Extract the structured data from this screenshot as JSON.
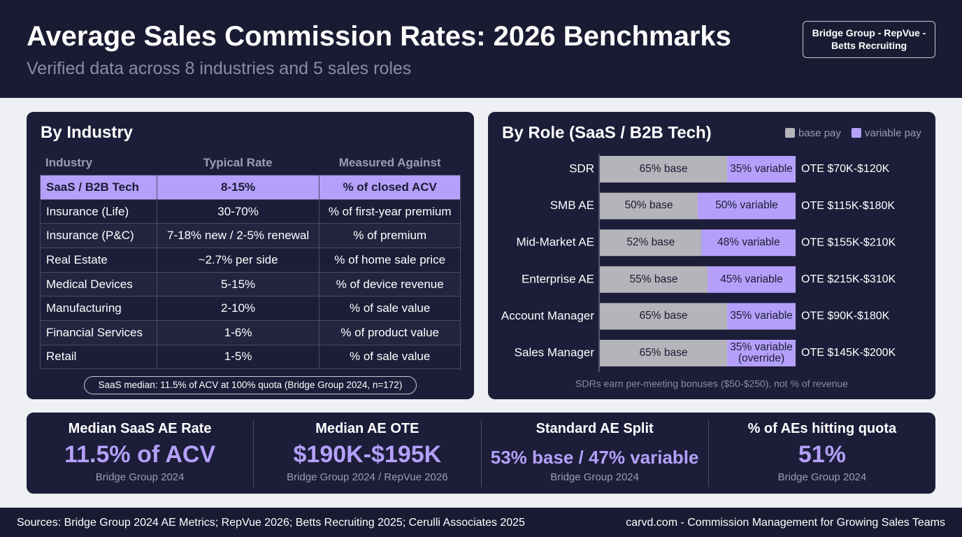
{
  "header": {
    "title": "Average Sales Commission Rates: 2026 Benchmarks",
    "subtitle": "Verified data across 8 industries and 5 sales roles",
    "badge": "Bridge Group - RepVue - Betts Recruiting"
  },
  "industry": {
    "title": "By Industry",
    "columns": [
      "Industry",
      "Typical Rate",
      "Measured Against"
    ],
    "rows": [
      [
        "SaaS / B2B Tech",
        "8-15%",
        "% of closed ACV"
      ],
      [
        "Insurance (Life)",
        "30-70%",
        "% of first-year premium"
      ],
      [
        "Insurance (P&C)",
        "7-18% new / 2-5% renewal",
        "% of premium"
      ],
      [
        "Real Estate",
        "~2.7% per side",
        "% of home sale price"
      ],
      [
        "Medical Devices",
        "5-15%",
        "% of device revenue"
      ],
      [
        "Manufacturing",
        "2-10%",
        "% of sale value"
      ],
      [
        "Financial Services",
        "1-6%",
        "% of product value"
      ],
      [
        "Retail",
        "1-5%",
        "% of sale value"
      ]
    ],
    "note": "SaaS median: 11.5% of ACV at 100% quota (Bridge Group 2024, n=172)"
  },
  "chart_data": {
    "type": "stacked-bar-horizontal",
    "title": "By Role (SaaS / B2B Tech)",
    "categories": [
      "SDR",
      "SMB AE",
      "Mid-Market AE",
      "Enterprise AE",
      "Account Manager",
      "Sales Manager"
    ],
    "series": [
      {
        "name": "base pay",
        "color": "#b4b4ba",
        "values": [
          65,
          50,
          52,
          55,
          65,
          65
        ],
        "value_labels": [
          "65% base",
          "50% base",
          "52% base",
          "55% base",
          "65% base",
          "65% base"
        ]
      },
      {
        "name": "variable pay",
        "color": "#b4a0fa",
        "values": [
          35,
          50,
          48,
          45,
          35,
          35
        ],
        "value_labels": [
          "35% variable",
          "50% variable",
          "48% variable",
          "45% variable",
          "35% variable",
          "35% variable (override)"
        ]
      }
    ],
    "annotations": [
      "OTE $70K-$120K",
      "OTE $115K-$180K",
      "OTE $155K-$210K",
      "OTE $215K-$310K",
      "OTE $90K-$180K",
      "OTE $145K-$200K"
    ],
    "note": "SDRs earn per-meeting bonuses ($50-$250), not % of revenue",
    "legend": "top-right"
  },
  "stats": [
    {
      "label": "Median SaaS AE Rate",
      "value": "11.5% of ACV",
      "source": "Bridge Group 2024"
    },
    {
      "label": "Median AE OTE",
      "value": "$190K-$195K",
      "source": "Bridge Group 2024 / RepVue 2026"
    },
    {
      "label": "Standard AE Split",
      "value": "53% base / 47% variable",
      "source": "Bridge Group 2024"
    },
    {
      "label": "% of AEs hitting quota",
      "value": "51%",
      "source": "Bridge Group 2024"
    }
  ],
  "footer": {
    "sources": "Sources: Bridge Group 2024 AE Metrics; RepVue 2026; Betts Recruiting 2025; Cerulli Associates 2025",
    "credit": "carvd.com - Commission Management for Growing Sales Teams"
  }
}
